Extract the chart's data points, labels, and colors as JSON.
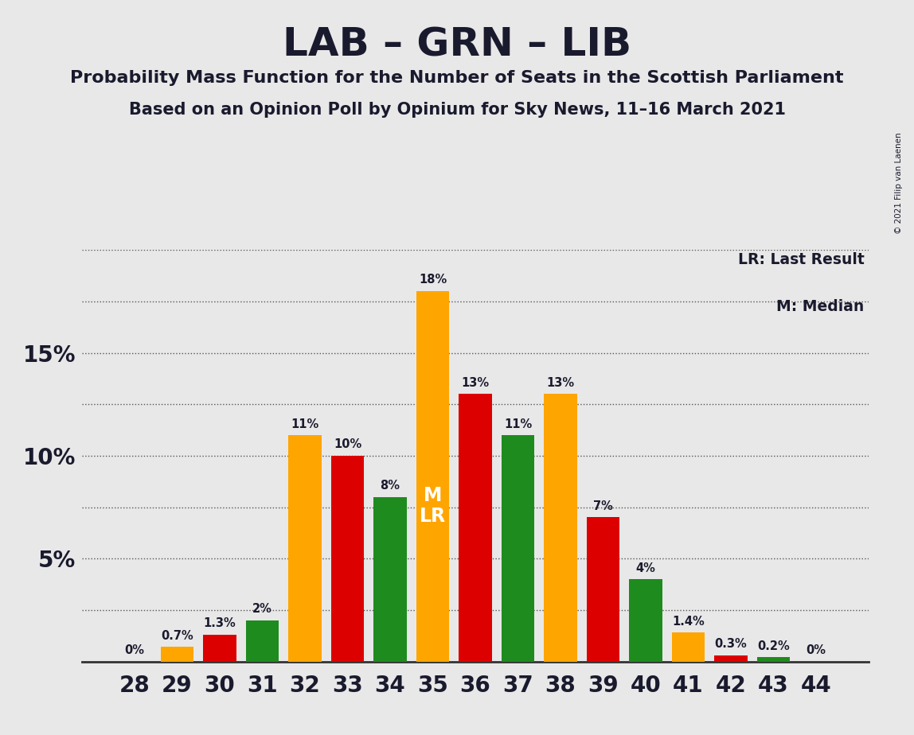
{
  "title": "LAB – GRN – LIB",
  "subtitle1": "Probability Mass Function for the Number of Seats in the Scottish Parliament",
  "subtitle2": "Based on an Opinion Poll by Opinium for Sky News, 11–16 March 2021",
  "copyright": "© 2021 Filip van Laenen",
  "legend_lr": "LR: Last Result",
  "legend_m": "M: Median",
  "seats": [
    28,
    29,
    30,
    31,
    32,
    33,
    34,
    35,
    36,
    37,
    38,
    39,
    40,
    41,
    42,
    43,
    44
  ],
  "values": [
    0.0,
    0.7,
    1.3,
    2.0,
    11.0,
    10.0,
    8.0,
    18.0,
    13.0,
    11.0,
    13.0,
    7.0,
    4.0,
    1.4,
    0.3,
    0.2,
    0.0
  ],
  "bar_colors_pattern": {
    "28": "orange",
    "29": "orange",
    "30": "red",
    "31": "green",
    "32": "orange",
    "33": "red",
    "34": "green",
    "35": "orange",
    "36": "red",
    "37": "green",
    "38": "orange",
    "39": "red",
    "40": "green",
    "41": "orange",
    "42": "red",
    "43": "green",
    "44": "red"
  },
  "orange": "#FFA500",
  "red": "#DD0000",
  "green": "#1E8B1E",
  "median_seat": 35,
  "last_result_seat": 35,
  "background_color": "#E8E8E8",
  "ylim": [
    0,
    20
  ],
  "yticks": [
    5,
    10,
    15
  ],
  "annotations": {
    "28": "0%",
    "29": "0.7%",
    "30": "1.3%",
    "31": "2%",
    "32": "11%",
    "33": "10%",
    "34": "8%",
    "35": "18%",
    "36": "13%",
    "37": "11%",
    "38": "13%",
    "39": "7%",
    "40": "4%",
    "41": "1.4%",
    "42": "0.3%",
    "43": "0.2%",
    "44": "0%"
  }
}
